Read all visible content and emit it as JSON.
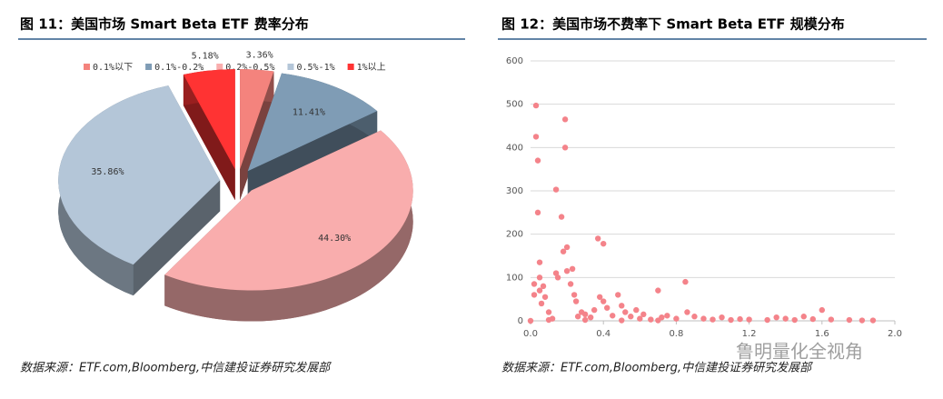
{
  "chart_data": [
    {
      "type": "pie",
      "title": "图 11：美国市场 Smart Beta ETF 费率分布",
      "categories": [
        "0.1%以下",
        "0.1%-0.2%",
        "0.2%-0.5%",
        "0.5%-1%",
        "1%以上"
      ],
      "values": [
        3.36,
        11.41,
        44.3,
        35.86,
        5.18
      ],
      "value_labels": [
        "3.36%",
        "11.41%",
        "44.30%",
        "35.86%",
        "5.18%"
      ],
      "colors": [
        "#f4837d",
        "#7f9cb5",
        "#f9adad",
        "#b4c6d8",
        "#ff3333"
      ],
      "legend": "top",
      "source": "数据来源：ETF.com,Bloomberg,中信建投证券研究发展部"
    },
    {
      "type": "scatter",
      "title": "图 12：美国市场不费率下 Smart Beta ETF 规模分布",
      "color": "#f4838a",
      "x": [
        0.0,
        0.02,
        0.02,
        0.03,
        0.03,
        0.04,
        0.04,
        0.05,
        0.05,
        0.05,
        0.06,
        0.07,
        0.08,
        0.1,
        0.12,
        0.14,
        0.14,
        0.15,
        0.17,
        0.18,
        0.19,
        0.19,
        0.2,
        0.2,
        0.22,
        0.23,
        0.24,
        0.25,
        0.26,
        0.28,
        0.3,
        0.33,
        0.35,
        0.37,
        0.38,
        0.4,
        0.4,
        0.42,
        0.45,
        0.48,
        0.5,
        0.52,
        0.55,
        0.58,
        0.6,
        0.62,
        0.66,
        0.7,
        0.72,
        0.75,
        0.8,
        0.85,
        0.86,
        0.9,
        0.95,
        1.0,
        1.05,
        1.1,
        1.15,
        1.2,
        1.3,
        1.35,
        1.4,
        1.45,
        1.5,
        1.55,
        1.6,
        1.65,
        1.75,
        1.82,
        1.88,
        0.1,
        0.3,
        0.5,
        0.7
      ],
      "y": [
        0,
        85,
        60,
        425,
        497,
        370,
        250,
        135,
        100,
        70,
        40,
        80,
        55,
        20,
        5,
        303,
        110,
        100,
        240,
        160,
        465,
        400,
        170,
        115,
        85,
        120,
        60,
        45,
        10,
        20,
        15,
        8,
        25,
        190,
        55,
        178,
        45,
        30,
        12,
        60,
        35,
        20,
        10,
        25,
        5,
        15,
        3,
        70,
        8,
        12,
        5,
        90,
        20,
        10,
        5,
        3,
        8,
        2,
        4,
        3,
        2,
        8,
        5,
        2,
        10,
        4,
        25,
        3,
        2,
        1,
        1,
        2,
        2,
        1,
        1
      ],
      "xlim": [
        0,
        2
      ],
      "xticks": [
        {
          "value": 0,
          "label": "0.0"
        },
        0.4,
        0.8,
        1.2,
        1.6,
        {
          "value": 2,
          "label": "2.0"
        }
      ],
      "ylim": [
        0,
        600
      ],
      "yticks": [
        0,
        100,
        200,
        300,
        400,
        500,
        600
      ],
      "grid": true,
      "source": "数据来源：ETF.com,Bloomberg,中信建投证券研究发展部"
    }
  ],
  "watermark": "鲁明量化全视角"
}
